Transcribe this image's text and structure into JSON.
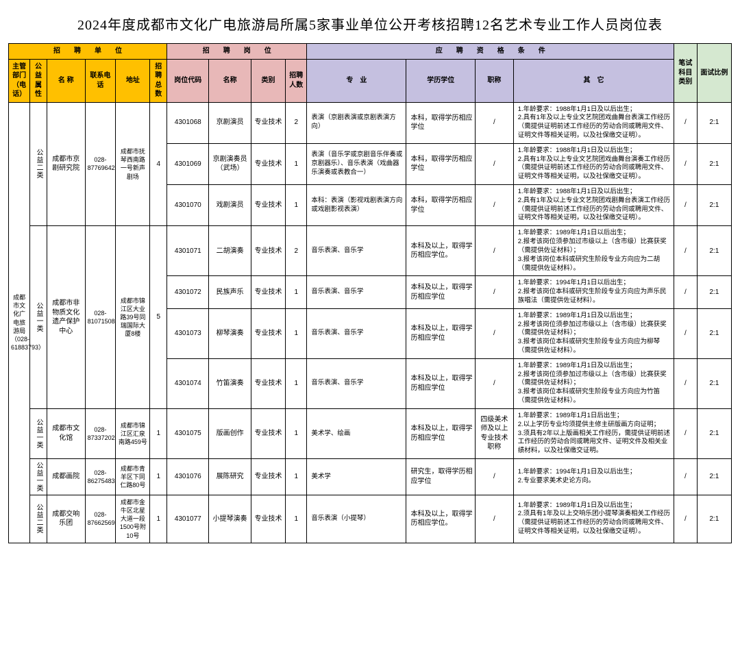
{
  "title": "2024年度成都市文化广电旅游局所属5家事业单位公开考核招聘12名艺术专业工作人员岗位表",
  "group_headers": {
    "unit": "招　　聘　　单　　位",
    "post": "招　　聘　　岗　　位",
    "qual": "应　　聘　　资　　格　　条　　件"
  },
  "cols": {
    "c1": "主管部门（电话）",
    "c2": "公益属性",
    "c3": "名 称",
    "c4": "联系电话",
    "c5": "地址",
    "c6": "招聘总数",
    "c7": "岗位代码",
    "c8": "名称",
    "c9": "类别",
    "c10": "招聘人数",
    "c11": "专　业",
    "c12": "学历学位",
    "c13": "职称",
    "c14": "其　它",
    "c15": "笔试科目类别",
    "c16": "面试比例"
  },
  "dept": "成都市文化广电旅游局（028-61883793）",
  "units": {
    "u1": {
      "welfare": "公益二类",
      "name": "成都市京剧研究院",
      "tel": "028-87769642",
      "addr": "成都市抚琴西南路一号新声剧场",
      "total": "4"
    },
    "u2": {
      "welfare": "公益一类",
      "name": "成都市非物质文化遗产保护中心",
      "tel": "028-81071508",
      "addr": "成都市锦江区大业路39号同瑞国际大厦8楼",
      "total": "5"
    },
    "u3": {
      "welfare": "公益一类",
      "name": "成都市文化馆",
      "tel": "028-87337202",
      "addr": "成都市锦江区汇泉南路459号",
      "total": "1"
    },
    "u4": {
      "welfare": "公益一类",
      "name": "成都画院",
      "tel": "028-86275483",
      "addr": "成都市青羊区下同仁路80号",
      "total": "1"
    },
    "u5": {
      "welfare": "公益二类",
      "name": "成都交响乐团",
      "tel": "028-87662569",
      "addr": "成都市金牛区北星大道一段1500号附10号",
      "total": "1"
    }
  },
  "rows": [
    {
      "code": "4301068",
      "name": "京剧演员",
      "cat": "专业技术",
      "num": "2",
      "major": "表演（京剧表演或京剧表演方向）",
      "edu": "本科，取得学历相应学位",
      "title": "/",
      "other": "1.年龄要求：1988年1月1日及以后出生；\n2.具有1年及以上专业文艺院团戏曲舞台表演工作经历（需提供证明前述工作经历的劳动合同或聘用文件、证明文件等相关证明，以及社保缴交证明）。",
      "exam": "/",
      "ratio": "2:1"
    },
    {
      "code": "4301069",
      "name": "京剧演奏员（武场）",
      "cat": "专业技术",
      "num": "1",
      "major": "表演（音乐学或京剧音乐伴奏或京剧器乐）、音乐表演（戏曲器乐演奏或表教合一）",
      "edu": "本科，取得学历相应学位",
      "title": "/",
      "other": "1.年龄要求：1988年1月1日及以后出生；\n2.具有1年及以上专业文艺院团戏曲舞台演奏工作经历（需提供证明前述工作经历的劳动合同或聘用文件、证明文件等相关证明，以及社保缴交证明）。",
      "exam": "/",
      "ratio": "2:1"
    },
    {
      "code": "4301070",
      "name": "戏剧演员",
      "cat": "专业技术",
      "num": "1",
      "major": "本科：表演（影视戏剧表演方向或戏剧影视表演）",
      "edu": "本科，取得学历相应学位",
      "title": "/",
      "other": "1.年龄要求：1988年1月1日及以后出生；\n2.具有1年及以上专业文艺院团戏剧舞台表演工作经历（需提供证明前述工作经历的劳动合同或聘用文件、证明文件等相关证明，以及社保缴交证明）。",
      "exam": "/",
      "ratio": "2:1"
    },
    {
      "code": "4301071",
      "name": "二胡演奏",
      "cat": "专业技术",
      "num": "2",
      "major": "音乐表演、音乐学",
      "edu": "本科及以上，取得学历相应学位。",
      "title": "/",
      "other": "1.年龄要求：1989年1月1日以后出生；\n2.报考该岗位须参加过市级以上（含市级）比赛获奖（需提供佐证材料）；\n3.报考该岗位本科或研究生阶段专业方向应为二胡（需提供佐证材料）。",
      "exam": "/",
      "ratio": "2:1"
    },
    {
      "code": "4301072",
      "name": "民族声乐",
      "cat": "专业技术",
      "num": "1",
      "major": "音乐表演、音乐学",
      "edu": "本科及以上，取得学历相应学位",
      "title": "/",
      "other": "1.年龄要求：1994年1月1日以后出生；\n2.报考该岗位本科或研究生阶段专业方向应为声乐民族唱法（需提供佐证材料）。",
      "exam": "/",
      "ratio": "2:1"
    },
    {
      "code": "4301073",
      "name": "柳琴演奏",
      "cat": "专业技术",
      "num": "1",
      "major": "音乐表演、音乐学",
      "edu": "本科及以上，取得学历相应学位",
      "title": "/",
      "other": "1.年龄要求：1989年1月1日及以后出生；\n2.报考该岗位须参加过市级以上（含市级）比赛获奖（需提供佐证材料）；\n3.报考该岗位本科或研究生阶段专业方向应为柳琴（需提供佐证材料）。",
      "exam": "/",
      "ratio": "2:1"
    },
    {
      "code": "4301074",
      "name": "竹笛演奏",
      "cat": "专业技术",
      "num": "1",
      "major": "音乐表演、音乐学",
      "edu": "本科及以上，取得学历相应学位",
      "title": "/",
      "other": "1.年龄要求：1989年1月1日及以后出生；\n2.报考该岗位须参加过市级以上（含市级）比赛获奖（需提供佐证材料）；\n3.报考该岗位本科或研究生阶段专业方向应为竹笛（需提供佐证材料）。",
      "exam": "/",
      "ratio": "2:1"
    },
    {
      "code": "4301075",
      "name": "版画创作",
      "cat": "专业技术",
      "num": "1",
      "major": "美术学、绘画",
      "edu": "本科及以上，取得学历相应学位",
      "title": "四级美术师及以上专业技术职称",
      "other": "1.年龄要求：1989年1月1日后出生；\n2.以上学历专业均须提供主修主研版画方向证明；\n3.须具有2年以上版画相关工作经历，需提供证明前述工作经历的劳动合同或聘用文件、证明文件及相关业绩材料，以及社保缴交证明。",
      "exam": "/",
      "ratio": "2:1"
    },
    {
      "code": "4301076",
      "name": "展陈研究",
      "cat": "专业技术",
      "num": "1",
      "major": "美术学",
      "edu": "研究生，取得学历相应学位",
      "title": "/",
      "other": "1.年龄要求：1994年1月1日及以后出生；\n2.专业要求美术史论方向。",
      "exam": "/",
      "ratio": "2:1"
    },
    {
      "code": "4301077",
      "name": "小提琴演奏",
      "cat": "专业技术",
      "num": "1",
      "major": "音乐表演（小提琴）",
      "edu": "本科及以上，取得学历相应学位。",
      "title": "/",
      "other": "1.年龄要求：1989年1月1日及以后出生；\n2.须具有1年及以上交响乐团小提琴演奏相关工作经历（需提供证明前述工作经历的劳动合同或聘用文件、证明文件等相关证明，以及社保缴交证明）。",
      "exam": "/",
      "ratio": "2:1"
    }
  ]
}
